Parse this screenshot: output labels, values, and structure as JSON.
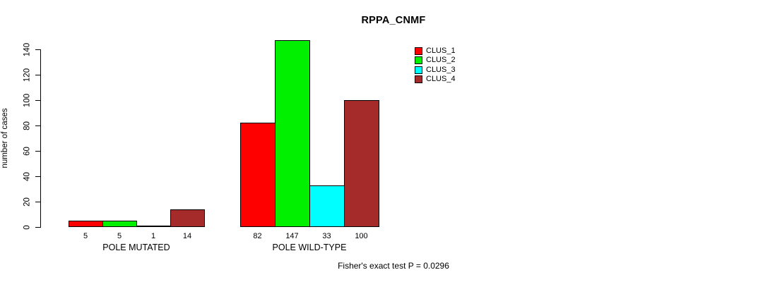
{
  "chart_data": {
    "type": "bar",
    "title": "RPPA_CNMF",
    "ylabel": "number of cases",
    "xlabel": "",
    "ylim": [
      0,
      140
    ],
    "yticks": [
      0,
      20,
      40,
      60,
      80,
      100,
      120,
      140
    ],
    "grid": false,
    "legend_position": "top-right",
    "categories": [
      "POLE MUTATED",
      "POLE WILD-TYPE"
    ],
    "groups": [
      {
        "label": "POLE MUTATED",
        "values": [
          5,
          5,
          1,
          14
        ]
      },
      {
        "label": "POLE WILD-TYPE",
        "values": [
          82,
          147,
          33,
          100
        ]
      }
    ],
    "series": [
      {
        "name": "CLUS_1",
        "color": "#ff0000"
      },
      {
        "name": "CLUS_2",
        "color": "#00f000"
      },
      {
        "name": "CLUS_3",
        "color": "#00ffff"
      },
      {
        "name": "CLUS_4",
        "color": "#a52a2a"
      }
    ],
    "bar_value_labels": [
      [
        5,
        5,
        1,
        14
      ],
      [
        82,
        147,
        33,
        100
      ]
    ],
    "annotation": "Fisher's exact test P = 0.0296"
  }
}
